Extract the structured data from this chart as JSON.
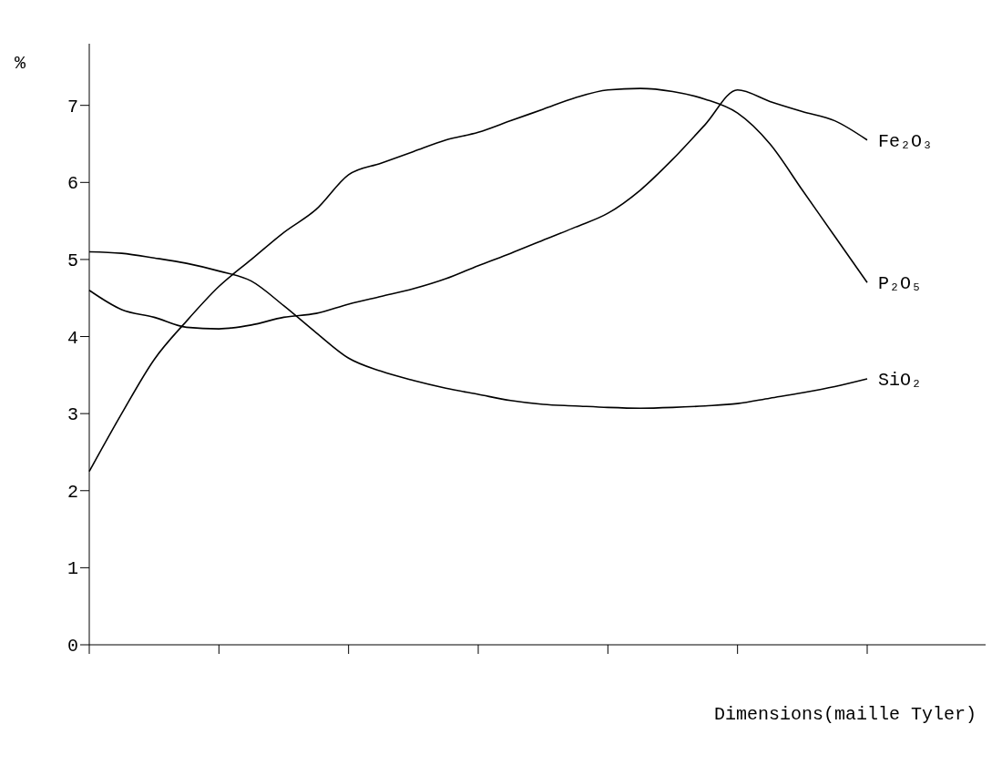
{
  "chart_data": {
    "type": "line",
    "ylabel": "%",
    "xlabel": "Dimensions(maille Tyler)",
    "categories": [
      null,
      null,
      null,
      null,
      null,
      null,
      null,
      null,
      null,
      null,
      null,
      null,
      null,
      null,
      null,
      null,
      null,
      null,
      null,
      null,
      null,
      null,
      null,
      null,
      null
    ],
    "ylim": [
      0,
      7.8
    ],
    "yticks": [
      0,
      1,
      2,
      3,
      4,
      5,
      6,
      7
    ],
    "tick_labels": "y",
    "grid": false,
    "legend": false,
    "line_style": "solid",
    "series": [
      {
        "name": "Fe₂O₃",
        "color": "#000000",
        "values": [
          4.6,
          4.35,
          4.25,
          4.12,
          4.1,
          4.15,
          4.25,
          4.3,
          4.42,
          4.52,
          4.62,
          4.75,
          4.92,
          5.08,
          5.25,
          5.42,
          5.6,
          5.9,
          6.3,
          6.75,
          7.2,
          7.05,
          6.92,
          6.8,
          6.55
        ]
      },
      {
        "name": "P₂O₅",
        "color": "#000000",
        "values": [
          2.25,
          3.0,
          3.7,
          4.2,
          4.65,
          5.0,
          5.35,
          5.65,
          6.1,
          6.25,
          6.4,
          6.55,
          6.65,
          6.8,
          6.95,
          7.1,
          7.2,
          7.22,
          7.18,
          7.08,
          6.9,
          6.5,
          5.9,
          5.3,
          4.7
        ]
      },
      {
        "name": "SiO₂",
        "color": "#000000",
        "values": [
          5.1,
          5.08,
          5.02,
          4.95,
          4.85,
          4.72,
          4.4,
          4.05,
          3.72,
          3.55,
          3.43,
          3.33,
          3.25,
          3.17,
          3.12,
          3.1,
          3.08,
          3.07,
          3.08,
          3.1,
          3.13,
          3.2,
          3.27,
          3.35,
          3.45
        ]
      }
    ]
  }
}
